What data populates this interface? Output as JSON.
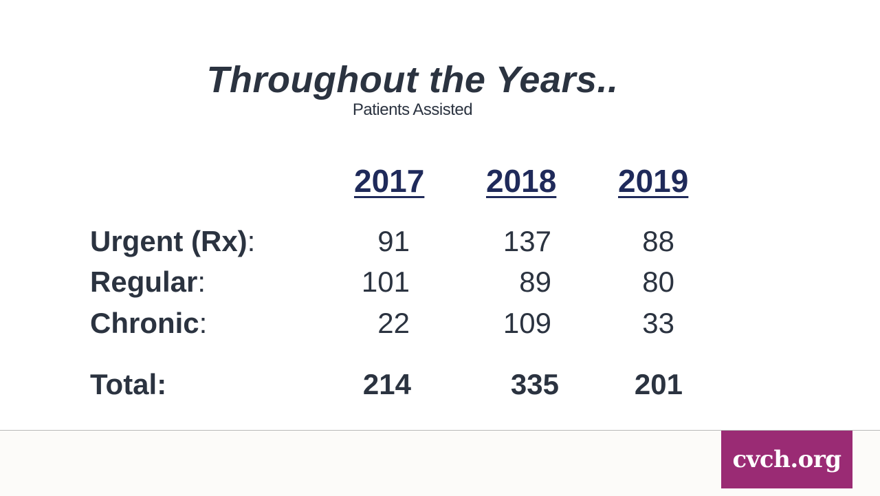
{
  "title": "Throughout the Years..",
  "subtitle": "Patients Assisted",
  "years": [
    "2017",
    "2018",
    "2019"
  ],
  "rows": [
    {
      "label": "Urgent (Rx)",
      "sep": ":",
      "values": [
        "91",
        "137",
        "88"
      ]
    },
    {
      "label": "Regular",
      "sep": ":",
      "values": [
        "101",
        "89",
        "80"
      ]
    },
    {
      "label": "Chronic",
      "sep": ":",
      "values": [
        "22",
        "109",
        "33"
      ]
    }
  ],
  "total": {
    "label": "Total:",
    "values": [
      "214",
      "335",
      "201"
    ]
  },
  "footer": {
    "logo_text": "cvch.org"
  },
  "colors": {
    "text": "#2b3340",
    "year_header": "#1f2a5a",
    "logo_bg": "#9a2b74"
  }
}
